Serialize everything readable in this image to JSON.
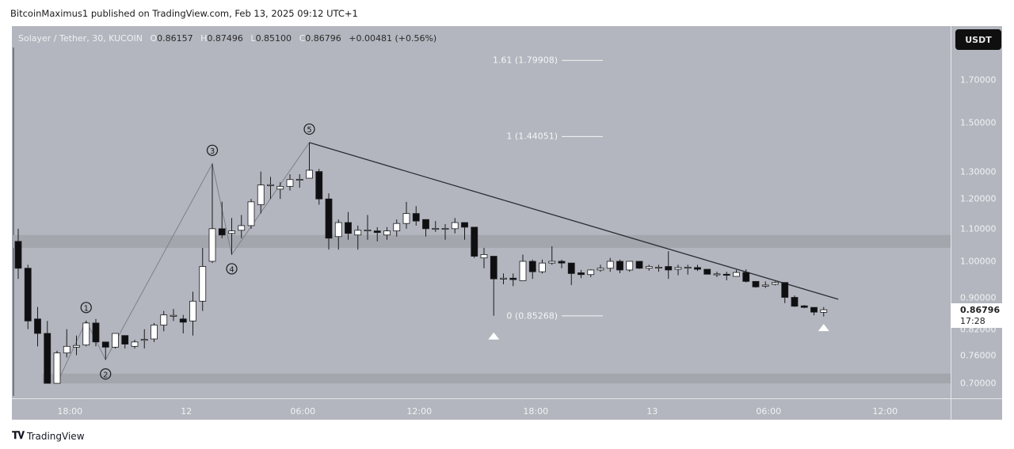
{
  "published": "BitcoinMaximus1 published on TradingView.com, Feb 13, 2025 09:12 UTC+1",
  "legend": {
    "symbol": "Solayer / Tether, 30, KUCOIN",
    "o_label": "O",
    "o": "0.86157",
    "h_label": "H",
    "h": "0.87496",
    "l_label": "L",
    "l": "0.85100",
    "c_label": "C",
    "c": "0.86796",
    "change": "+0.00481 (+0.56%)"
  },
  "currency_button": "USDT",
  "last_price": {
    "price": "0.86796",
    "countdown": "17:28"
  },
  "logo_text": "TradingView",
  "colors": {
    "background": "#b3b6be",
    "zone": "#a3a6ad",
    "bull": "#ffffff",
    "bear": "#0f0f12",
    "line": "#2a2d33",
    "wave": "#7d8088"
  },
  "icons": {
    "logo": "tradingview-logo",
    "signal": "triangle-up-icon"
  },
  "chart_data": {
    "type": "candlestick",
    "interval_minutes": 30,
    "y_scale": "log",
    "ylim": [
      0.66,
      1.95
    ],
    "grid": false,
    "y_ticks": [
      {
        "value": 1.7,
        "label": "1.70000"
      },
      {
        "value": 1.5,
        "label": "1.50000"
      },
      {
        "value": 1.3,
        "label": "1.30000"
      },
      {
        "value": 1.2,
        "label": "1.20000"
      },
      {
        "value": 1.1,
        "label": "1.10000"
      },
      {
        "value": 1.0,
        "label": "1.00000"
      },
      {
        "value": 0.9,
        "label": "0.90000"
      },
      {
        "value": 0.82,
        "label": "0.82000"
      },
      {
        "value": 0.76,
        "label": "0.76000"
      },
      {
        "value": 0.7,
        "label": "0.70000"
      }
    ],
    "x_ticks": [
      {
        "time": "02-11 18:00",
        "label": "18:00"
      },
      {
        "time": "02-12 00:00",
        "label": "12"
      },
      {
        "time": "02-12 06:00",
        "label": "06:00"
      },
      {
        "time": "02-12 12:00",
        "label": "12:00"
      },
      {
        "time": "02-12 18:00",
        "label": "18:00"
      },
      {
        "time": "02-13 00:00",
        "label": "13"
      },
      {
        "time": "02-13 06:00",
        "label": "06:00"
      },
      {
        "time": "02-13 12:00",
        "label": "12:00"
      }
    ],
    "candles_columns": [
      "time",
      "open",
      "high",
      "low",
      "close"
    ],
    "candles": [
      [
        "02-11 15:30",
        1.06,
        1.1,
        0.95,
        0.98
      ],
      [
        "02-11 16:00",
        0.98,
        0.99,
        0.82,
        0.84
      ],
      [
        "02-11 16:30",
        0.845,
        0.875,
        0.78,
        0.81
      ],
      [
        "02-11 17:00",
        0.81,
        0.84,
        0.7,
        0.7
      ],
      [
        "02-11 17:30",
        0.7,
        0.77,
        0.7,
        0.765
      ],
      [
        "02-11 18:00",
        0.765,
        0.82,
        0.755,
        0.78
      ],
      [
        "02-11 18:30",
        0.778,
        0.805,
        0.76,
        0.782
      ],
      [
        "02-11 19:00",
        0.783,
        0.84,
        0.78,
        0.835
      ],
      [
        "02-11 19:30",
        0.835,
        0.845,
        0.78,
        0.79
      ],
      [
        "02-11 20:00",
        0.79,
        0.79,
        0.75,
        0.778
      ],
      [
        "02-11 20:30",
        0.778,
        0.81,
        0.775,
        0.81
      ],
      [
        "02-11 21:00",
        0.805,
        0.805,
        0.775,
        0.785
      ],
      [
        "02-11 21:30",
        0.78,
        0.795,
        0.775,
        0.79
      ],
      [
        "02-11 22:00",
        0.795,
        0.82,
        0.775,
        0.796
      ],
      [
        "02-11 22:30",
        0.797,
        0.835,
        0.79,
        0.83
      ],
      [
        "02-11 23:00",
        0.83,
        0.865,
        0.815,
        0.855
      ],
      [
        "02-11 23:30",
        0.853,
        0.87,
        0.84,
        0.854
      ],
      [
        "02-12 00:00",
        0.845,
        0.855,
        0.81,
        0.837
      ],
      [
        "02-12 00:30",
        0.84,
        0.915,
        0.805,
        0.89
      ],
      [
        "02-12 01:00",
        0.89,
        1.04,
        0.865,
        0.985
      ],
      [
        "02-12 01:30",
        1.0,
        1.33,
        0.995,
        1.1
      ],
      [
        "02-12 02:00",
        1.1,
        1.19,
        1.07,
        1.08
      ],
      [
        "02-12 02:30",
        1.085,
        1.135,
        1.02,
        1.093
      ],
      [
        "02-12 03:00",
        1.095,
        1.145,
        1.07,
        1.11
      ],
      [
        "02-12 03:30",
        1.11,
        1.2,
        1.1,
        1.19
      ],
      [
        "02-12 04:00",
        1.18,
        1.3,
        1.15,
        1.25
      ],
      [
        "02-12 04:30",
        1.25,
        1.28,
        1.2,
        1.251
      ],
      [
        "02-12 05:00",
        1.235,
        1.26,
        1.2,
        1.245
      ],
      [
        "02-12 05:30",
        1.245,
        1.29,
        1.23,
        1.27
      ],
      [
        "02-12 06:00",
        1.27,
        1.29,
        1.24,
        1.271
      ],
      [
        "02-12 06:30",
        1.275,
        1.415,
        1.275,
        1.305
      ],
      [
        "02-12 07:00",
        1.3,
        1.31,
        1.18,
        1.2
      ],
      [
        "02-12 07:30",
        1.2,
        1.22,
        1.035,
        1.07
      ],
      [
        "02-12 08:00",
        1.075,
        1.13,
        1.035,
        1.12
      ],
      [
        "02-12 08:30",
        1.12,
        1.155,
        1.065,
        1.085
      ],
      [
        "02-12 09:00",
        1.08,
        1.11,
        1.035,
        1.095
      ],
      [
        "02-12 09:30",
        1.095,
        1.145,
        1.065,
        1.096
      ],
      [
        "02-12 10:00",
        1.093,
        1.105,
        1.06,
        1.088
      ],
      [
        "02-12 10:30",
        1.08,
        1.105,
        1.065,
        1.093
      ],
      [
        "02-12 11:00",
        1.093,
        1.13,
        1.075,
        1.117
      ],
      [
        "02-12 11:30",
        1.117,
        1.19,
        1.1,
        1.15
      ],
      [
        "02-12 12:00",
        1.15,
        1.175,
        1.11,
        1.125
      ],
      [
        "02-12 12:30",
        1.13,
        1.13,
        1.075,
        1.1
      ],
      [
        "02-12 13:00",
        1.1,
        1.125,
        1.09,
        1.101
      ],
      [
        "02-12 13:30",
        1.1,
        1.115,
        1.065,
        1.101
      ],
      [
        "02-12 14:00",
        1.1,
        1.135,
        1.085,
        1.12
      ],
      [
        "02-12 14:30",
        1.12,
        1.12,
        1.065,
        1.105
      ],
      [
        "02-12 15:00",
        1.105,
        1.105,
        1.01,
        1.015
      ],
      [
        "02-12 15:30",
        1.01,
        1.04,
        0.98,
        1.02
      ],
      [
        "02-12 16:00",
        1.015,
        1.015,
        0.853,
        0.95
      ],
      [
        "02-12 16:30",
        0.95,
        0.965,
        0.935,
        0.952
      ],
      [
        "02-12 17:00",
        0.952,
        0.965,
        0.93,
        0.948
      ],
      [
        "02-12 17:30",
        0.945,
        1.02,
        0.945,
        1.0
      ],
      [
        "02-12 18:00",
        1.0,
        1.005,
        0.95,
        0.97
      ],
      [
        "02-12 18:30",
        0.97,
        1.005,
        0.965,
        0.995
      ],
      [
        "02-12 19:00",
        0.995,
        1.045,
        0.99,
        1.0
      ],
      [
        "02-12 19:30",
        1.0,
        1.005,
        0.98,
        0.995
      ],
      [
        "02-12 20:00",
        0.995,
        0.995,
        0.933,
        0.965
      ],
      [
        "02-12 20:30",
        0.967,
        0.975,
        0.952,
        0.962
      ],
      [
        "02-12 21:00",
        0.962,
        0.977,
        0.955,
        0.975
      ],
      [
        "02-12 21:30",
        0.975,
        0.99,
        0.97,
        0.98
      ],
      [
        "02-12 22:00",
        0.98,
        1.01,
        0.97,
        1.0
      ],
      [
        "02-12 22:30",
        1.0,
        1.005,
        0.966,
        0.975
      ],
      [
        "02-12 23:00",
        0.975,
        1.0,
        0.97,
        1.0
      ],
      [
        "02-12 23:30",
        1.0,
        1.0,
        0.978,
        0.98
      ],
      [
        "02-13 00:00",
        0.98,
        0.99,
        0.973,
        0.985
      ],
      [
        "02-13 00:30",
        0.982,
        0.99,
        0.97,
        0.983
      ],
      [
        "02-13 01:00",
        0.985,
        1.03,
        0.95,
        0.975
      ],
      [
        "02-13 01:30",
        0.977,
        0.99,
        0.96,
        0.982
      ],
      [
        "02-13 02:00",
        0.982,
        0.99,
        0.962,
        0.983
      ],
      [
        "02-13 02:30",
        0.982,
        0.99,
        0.972,
        0.977
      ],
      [
        "02-13 03:00",
        0.977,
        0.977,
        0.963,
        0.963
      ],
      [
        "02-13 03:30",
        0.963,
        0.97,
        0.955,
        0.964
      ],
      [
        "02-13 04:00",
        0.963,
        0.97,
        0.946,
        0.96
      ],
      [
        "02-13 04:30",
        0.957,
        0.975,
        0.957,
        0.968
      ],
      [
        "02-13 05:00",
        0.968,
        0.977,
        0.94,
        0.943
      ],
      [
        "02-13 05:30",
        0.943,
        0.943,
        0.926,
        0.928
      ],
      [
        "02-13 06:00",
        0.93,
        0.943,
        0.925,
        0.933
      ],
      [
        "02-13 06:30",
        0.935,
        0.943,
        0.932,
        0.94
      ],
      [
        "02-13 07:00",
        0.94,
        0.94,
        0.885,
        0.9
      ],
      [
        "02-13 07:30",
        0.9,
        0.905,
        0.875,
        0.877
      ],
      [
        "02-13 08:00",
        0.878,
        0.88,
        0.872,
        0.874
      ],
      [
        "02-13 08:30",
        0.874,
        0.874,
        0.854,
        0.862
      ],
      [
        "02-13 09:00",
        0.86157,
        0.87496,
        0.851,
        0.86796
      ]
    ],
    "zones": [
      {
        "from_time": "02-11 15:00",
        "top": 1.08,
        "bottom": 1.04
      },
      {
        "from_time": "02-11 17:00",
        "top": 0.72,
        "bottom": 0.7
      }
    ],
    "fib_levels": [
      {
        "label": "1.61 (1.79908)",
        "price": 1.79908
      },
      {
        "label": "1 (1.44051)",
        "price": 1.44051
      },
      {
        "label": "0 (0.85268)",
        "price": 0.85268
      }
    ],
    "fib_time": "02-12 19:30",
    "wave_points": [
      {
        "time": "02-11 17:30",
        "price": 0.7,
        "label": ""
      },
      {
        "time": "02-11 19:00",
        "price": 0.84,
        "label": "1"
      },
      {
        "time": "02-11 20:00",
        "price": 0.75,
        "label": "2"
      },
      {
        "time": "02-12 01:30",
        "price": 1.33,
        "label": "3"
      },
      {
        "time": "02-12 02:30",
        "price": 1.02,
        "label": "4"
      },
      {
        "time": "02-12 06:30",
        "price": 1.415,
        "label": "5"
      }
    ],
    "trendline": [
      {
        "time": "02-12 06:30",
        "price": 1.415
      },
      {
        "time": "02-13 09:45",
        "price": 0.895
      }
    ],
    "signals": [
      {
        "time": "02-12 16:00",
        "price": 0.805,
        "type": "up"
      },
      {
        "time": "02-13 09:00",
        "price": 0.825,
        "type": "up"
      }
    ]
  }
}
